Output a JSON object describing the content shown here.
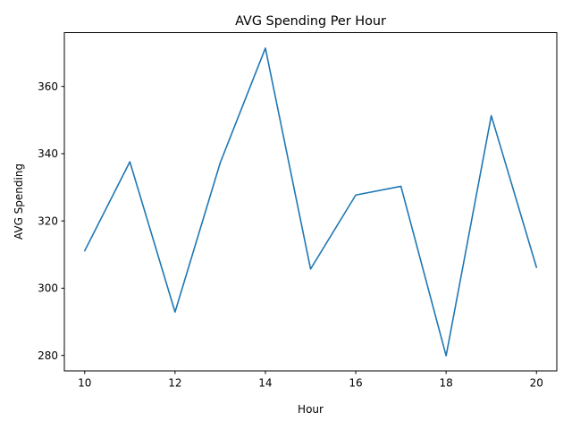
{
  "chart_data": {
    "type": "line",
    "title": "AVG Spending Per Hour",
    "xlabel": "Hour",
    "ylabel": "AVG Spending",
    "xlim": [
      9.55,
      20.45
    ],
    "ylim": [
      275.4,
      376.0
    ],
    "xticks": [
      10,
      12,
      14,
      16,
      18,
      20
    ],
    "yticks": [
      280,
      300,
      320,
      340,
      360
    ],
    "grid": false,
    "series": [
      {
        "color": "#1f77b4",
        "x": [
          10,
          11,
          12,
          13,
          14,
          15,
          16,
          17,
          18,
          19,
          20
        ],
        "y": [
          311.1,
          337.6,
          292.9,
          337.3,
          371.4,
          305.7,
          327.7,
          330.3,
          279.9,
          351.3,
          306.2
        ]
      }
    ]
  }
}
